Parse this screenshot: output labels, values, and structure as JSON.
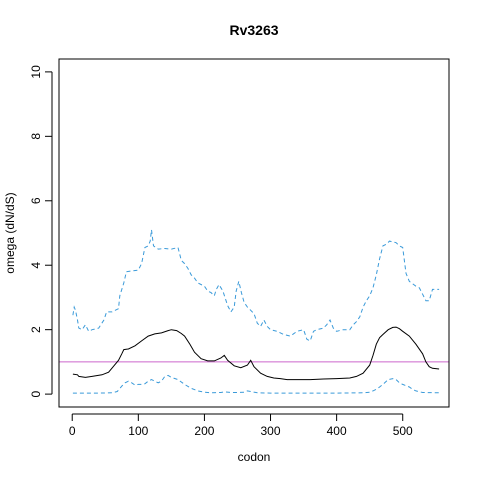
{
  "chart_data": {
    "type": "line",
    "title": "Rv3263",
    "xlabel": "codon",
    "ylabel": "omega (dN/dS)",
    "xlim": [
      -20,
      570
    ],
    "ylim": [
      -0.4,
      10.4
    ],
    "xticks": [
      0,
      100,
      200,
      300,
      400,
      500
    ],
    "yticks": [
      0,
      2,
      4,
      6,
      8,
      10
    ],
    "reference_line": {
      "y": 1,
      "color": "#cc66cc"
    },
    "grid": false,
    "series": [
      {
        "role": "estimate",
        "color": "#000000",
        "dash": "solid",
        "points": [
          [
            1,
            0.62
          ],
          [
            8,
            0.6
          ],
          [
            10,
            0.55
          ],
          [
            20,
            0.52
          ],
          [
            30,
            0.55
          ],
          [
            45,
            0.6
          ],
          [
            55,
            0.68
          ],
          [
            62,
            0.85
          ],
          [
            70,
            1.05
          ],
          [
            75,
            1.25
          ],
          [
            78,
            1.38
          ],
          [
            85,
            1.4
          ],
          [
            95,
            1.5
          ],
          [
            105,
            1.65
          ],
          [
            115,
            1.8
          ],
          [
            125,
            1.87
          ],
          [
            135,
            1.9
          ],
          [
            145,
            1.97
          ],
          [
            150,
            2.0
          ],
          [
            158,
            1.97
          ],
          [
            165,
            1.88
          ],
          [
            170,
            1.8
          ],
          [
            178,
            1.55
          ],
          [
            185,
            1.3
          ],
          [
            195,
            1.1
          ],
          [
            205,
            1.03
          ],
          [
            215,
            1.03
          ],
          [
            225,
            1.12
          ],
          [
            230,
            1.2
          ],
          [
            235,
            1.05
          ],
          [
            245,
            0.88
          ],
          [
            255,
            0.82
          ],
          [
            265,
            0.9
          ],
          [
            270,
            1.05
          ],
          [
            275,
            0.85
          ],
          [
            285,
            0.65
          ],
          [
            295,
            0.55
          ],
          [
            305,
            0.5
          ],
          [
            315,
            0.48
          ],
          [
            325,
            0.45
          ],
          [
            340,
            0.45
          ],
          [
            360,
            0.45
          ],
          [
            380,
            0.47
          ],
          [
            400,
            0.48
          ],
          [
            420,
            0.5
          ],
          [
            430,
            0.55
          ],
          [
            440,
            0.65
          ],
          [
            450,
            0.9
          ],
          [
            455,
            1.2
          ],
          [
            460,
            1.55
          ],
          [
            465,
            1.75
          ],
          [
            470,
            1.85
          ],
          [
            478,
            2.0
          ],
          [
            485,
            2.07
          ],
          [
            490,
            2.08
          ],
          [
            495,
            2.03
          ],
          [
            500,
            1.95
          ],
          [
            510,
            1.8
          ],
          [
            520,
            1.55
          ],
          [
            530,
            1.25
          ],
          [
            535,
            1.0
          ],
          [
            540,
            0.85
          ],
          [
            545,
            0.8
          ],
          [
            555,
            0.78
          ]
        ]
      },
      {
        "role": "upper bound",
        "color": "#3a9ad9",
        "dash": "dashed",
        "points": [
          [
            1,
            2.45
          ],
          [
            3,
            2.7
          ],
          [
            5,
            2.6
          ],
          [
            8,
            2.3
          ],
          [
            10,
            2.05
          ],
          [
            15,
            2.0
          ],
          [
            20,
            2.15
          ],
          [
            25,
            1.95
          ],
          [
            30,
            2.0
          ],
          [
            40,
            2.05
          ],
          [
            48,
            2.3
          ],
          [
            52,
            2.55
          ],
          [
            60,
            2.55
          ],
          [
            70,
            2.65
          ],
          [
            72,
            3.05
          ],
          [
            78,
            3.45
          ],
          [
            82,
            3.8
          ],
          [
            90,
            3.82
          ],
          [
            100,
            3.85
          ],
          [
            105,
            4.05
          ],
          [
            110,
            4.55
          ],
          [
            115,
            4.6
          ],
          [
            118,
            4.75
          ],
          [
            120,
            5.1
          ],
          [
            123,
            4.6
          ],
          [
            130,
            4.5
          ],
          [
            140,
            4.52
          ],
          [
            150,
            4.5
          ],
          [
            160,
            4.55
          ],
          [
            165,
            4.15
          ],
          [
            170,
            4.05
          ],
          [
            175,
            3.9
          ],
          [
            180,
            3.7
          ],
          [
            185,
            3.6
          ],
          [
            190,
            3.45
          ],
          [
            200,
            3.35
          ],
          [
            205,
            3.2
          ],
          [
            210,
            3.15
          ],
          [
            215,
            3.05
          ],
          [
            218,
            3.25
          ],
          [
            222,
            3.4
          ],
          [
            228,
            3.2
          ],
          [
            235,
            2.75
          ],
          [
            240,
            2.55
          ],
          [
            245,
            2.7
          ],
          [
            248,
            3.2
          ],
          [
            252,
            3.5
          ],
          [
            256,
            3.15
          ],
          [
            260,
            2.85
          ],
          [
            265,
            2.7
          ],
          [
            270,
            2.6
          ],
          [
            275,
            2.5
          ],
          [
            280,
            2.2
          ],
          [
            285,
            2.1
          ],
          [
            290,
            2.3
          ],
          [
            295,
            2.1
          ],
          [
            300,
            2.0
          ],
          [
            310,
            1.95
          ],
          [
            320,
            1.85
          ],
          [
            330,
            1.8
          ],
          [
            340,
            1.95
          ],
          [
            350,
            2.0
          ],
          [
            355,
            1.7
          ],
          [
            360,
            1.65
          ],
          [
            365,
            1.95
          ],
          [
            370,
            2.0
          ],
          [
            380,
            2.05
          ],
          [
            385,
            2.15
          ],
          [
            390,
            2.3
          ],
          [
            395,
            2.05
          ],
          [
            400,
            1.95
          ],
          [
            410,
            2.0
          ],
          [
            420,
            2.0
          ],
          [
            425,
            2.15
          ],
          [
            430,
            2.25
          ],
          [
            435,
            2.4
          ],
          [
            440,
            2.7
          ],
          [
            445,
            2.9
          ],
          [
            450,
            3.05
          ],
          [
            455,
            3.3
          ],
          [
            460,
            3.7
          ],
          [
            465,
            4.2
          ],
          [
            470,
            4.6
          ],
          [
            475,
            4.65
          ],
          [
            480,
            4.75
          ],
          [
            490,
            4.7
          ],
          [
            495,
            4.6
          ],
          [
            500,
            4.55
          ],
          [
            505,
            3.75
          ],
          [
            510,
            3.5
          ],
          [
            520,
            3.35
          ],
          [
            525,
            3.3
          ],
          [
            530,
            3.1
          ],
          [
            535,
            2.9
          ],
          [
            540,
            2.9
          ],
          [
            545,
            3.25
          ],
          [
            555,
            3.25
          ]
        ]
      },
      {
        "role": "lower bound",
        "color": "#3a9ad9",
        "dash": "dashed",
        "points": [
          [
            1,
            0.03
          ],
          [
            40,
            0.03
          ],
          [
            60,
            0.04
          ],
          [
            68,
            0.08
          ],
          [
            70,
            0.12
          ],
          [
            75,
            0.25
          ],
          [
            80,
            0.35
          ],
          [
            85,
            0.4
          ],
          [
            90,
            0.35
          ],
          [
            95,
            0.28
          ],
          [
            100,
            0.3
          ],
          [
            105,
            0.3
          ],
          [
            110,
            0.32
          ],
          [
            115,
            0.4
          ],
          [
            120,
            0.45
          ],
          [
            125,
            0.4
          ],
          [
            130,
            0.35
          ],
          [
            135,
            0.4
          ],
          [
            140,
            0.55
          ],
          [
            145,
            0.58
          ],
          [
            150,
            0.52
          ],
          [
            160,
            0.45
          ],
          [
            170,
            0.3
          ],
          [
            180,
            0.18
          ],
          [
            190,
            0.1
          ],
          [
            200,
            0.06
          ],
          [
            210,
            0.04
          ],
          [
            225,
            0.05
          ],
          [
            230,
            0.07
          ],
          [
            240,
            0.05
          ],
          [
            250,
            0.05
          ],
          [
            260,
            0.06
          ],
          [
            265,
            0.1
          ],
          [
            270,
            0.08
          ],
          [
            280,
            0.04
          ],
          [
            300,
            0.03
          ],
          [
            350,
            0.03
          ],
          [
            400,
            0.03
          ],
          [
            440,
            0.04
          ],
          [
            450,
            0.06
          ],
          [
            455,
            0.1
          ],
          [
            460,
            0.15
          ],
          [
            465,
            0.22
          ],
          [
            470,
            0.3
          ],
          [
            478,
            0.45
          ],
          [
            485,
            0.48
          ],
          [
            490,
            0.45
          ],
          [
            495,
            0.35
          ],
          [
            500,
            0.3
          ],
          [
            510,
            0.22
          ],
          [
            515,
            0.15
          ],
          [
            520,
            0.1
          ],
          [
            530,
            0.05
          ],
          [
            555,
            0.04
          ]
        ]
      }
    ]
  }
}
